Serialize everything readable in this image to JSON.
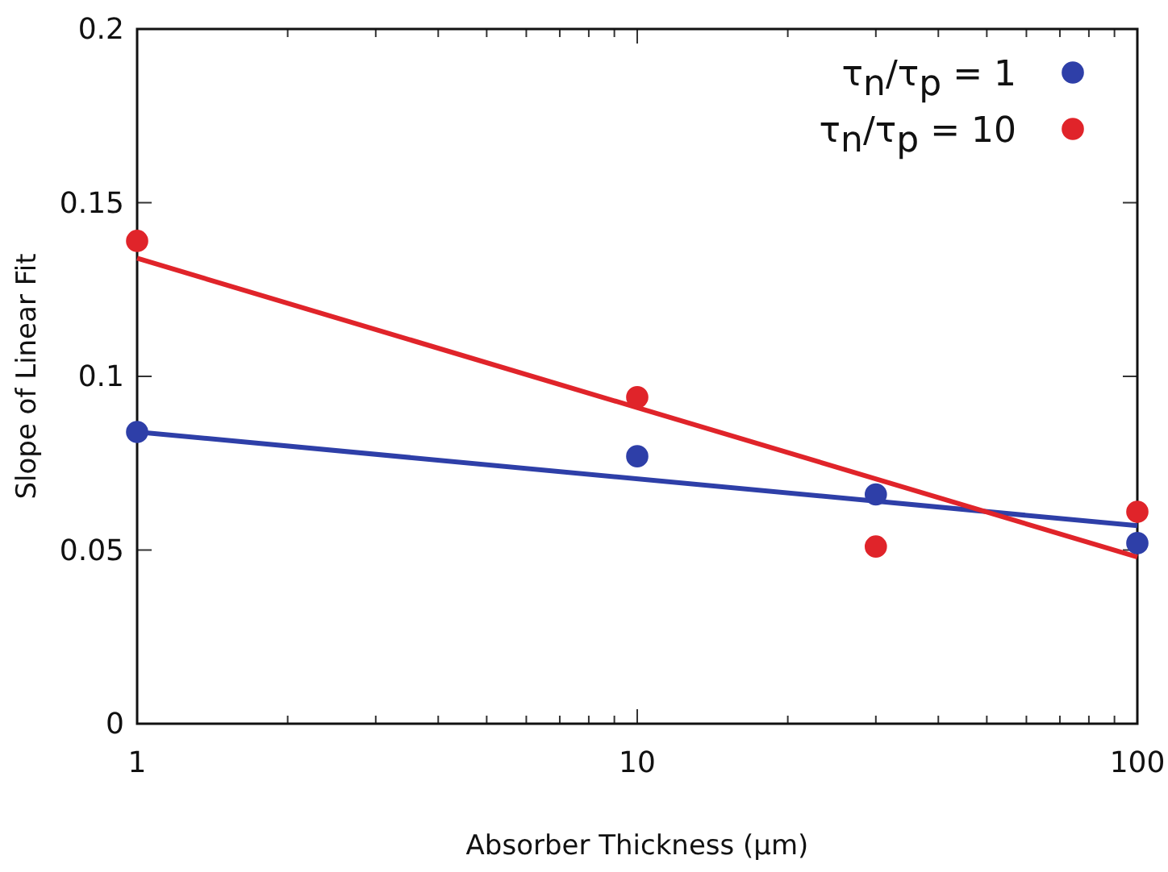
{
  "chart_data": {
    "type": "scatter",
    "xlabel": "Absorber Thickness (µm)",
    "ylabel": "Slope of Linear Fit",
    "log": "x",
    "xlim": [
      1,
      100
    ],
    "ylim": [
      0,
      0.2
    ],
    "xticks": [
      1,
      {
        "value": 2,
        "label": null
      },
      {
        "value": 3,
        "label": null
      },
      {
        "value": 4,
        "label": null
      },
      {
        "value": 5,
        "label": null
      },
      {
        "value": 6,
        "label": null
      },
      {
        "value": 7,
        "label": null
      },
      {
        "value": 8,
        "label": null
      },
      {
        "value": 9,
        "label": null
      },
      10,
      {
        "value": 20,
        "label": null
      },
      {
        "value": 30,
        "label": null
      },
      {
        "value": 40,
        "label": null
      },
      {
        "value": 50,
        "label": null
      },
      {
        "value": 60,
        "label": null
      },
      {
        "value": 70,
        "label": null
      },
      {
        "value": 80,
        "label": null
      },
      {
        "value": 90,
        "label": null
      },
      100
    ],
    "yticks": [
      0,
      0.05,
      0.1,
      0.15,
      0.2
    ],
    "grid": false,
    "legend": "top right",
    "marker": "circle",
    "series": [
      {
        "name": "τ$_{n}$/τ$_{p}$ = 1",
        "color": "#2e3fa8",
        "x": [
          1,
          10,
          30,
          100
        ],
        "values": [
          0.084,
          0.077,
          0.066,
          0.052
        ]
      },
      {
        "name": "τ$_{n}$/τ$_{p}$ = 10",
        "color": "#e0242a",
        "x": [
          1,
          10,
          30,
          100
        ],
        "values": [
          0.139,
          0.094,
          0.051,
          0.061
        ]
      },
      {
        "type": "line",
        "marker": "none",
        "color": "#2e3fa8",
        "x": [
          1,
          100
        ],
        "values": [
          0.084,
          0.057
        ]
      },
      {
        "type": "line",
        "marker": "none",
        "color": "#e0242a",
        "x": [
          1,
          100
        ],
        "values": [
          0.134,
          0.048
        ]
      }
    ]
  }
}
